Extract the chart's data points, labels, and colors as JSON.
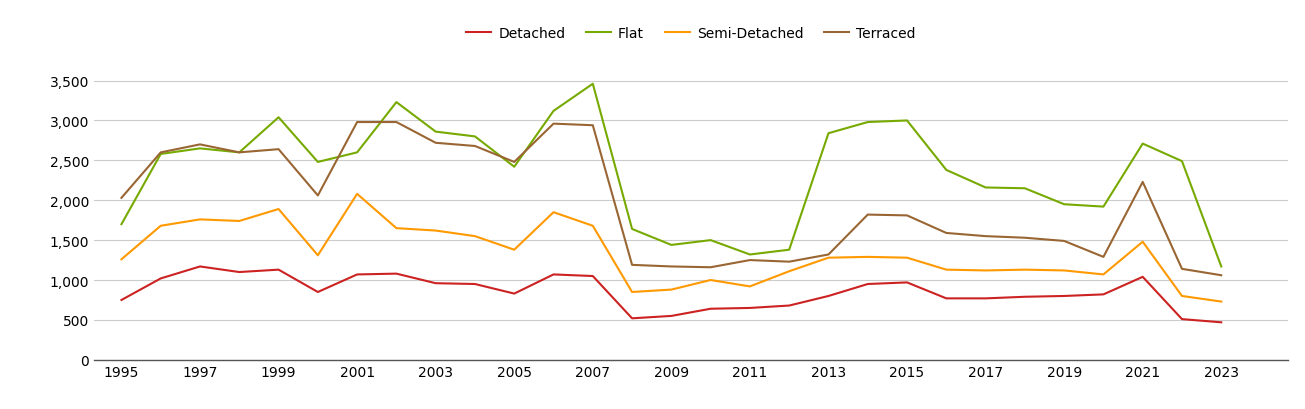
{
  "years": [
    1995,
    1996,
    1997,
    1998,
    1999,
    2000,
    2001,
    2002,
    2003,
    2004,
    2005,
    2006,
    2007,
    2008,
    2009,
    2010,
    2011,
    2012,
    2013,
    2014,
    2015,
    2016,
    2017,
    2018,
    2019,
    2020,
    2021,
    2022,
    2023,
    2024
  ],
  "detached": [
    750,
    1020,
    1170,
    1100,
    1130,
    850,
    1070,
    1080,
    960,
    950,
    830,
    1070,
    1050,
    520,
    550,
    640,
    650,
    680,
    800,
    950,
    970,
    770,
    770,
    790,
    800,
    820,
    1040,
    510,
    470,
    null
  ],
  "flat": [
    1700,
    2580,
    2650,
    2600,
    3040,
    2480,
    2600,
    3230,
    2860,
    2800,
    2420,
    3120,
    3460,
    1640,
    1440,
    1500,
    1320,
    1380,
    2840,
    2980,
    3000,
    2380,
    2160,
    2150,
    1950,
    1920,
    2710,
    2490,
    1170,
    null
  ],
  "semi_detached": [
    1260,
    1680,
    1760,
    1740,
    1890,
    1310,
    2080,
    1650,
    1620,
    1550,
    1380,
    1850,
    1680,
    850,
    880,
    1000,
    920,
    1110,
    1280,
    1290,
    1280,
    1130,
    1120,
    1130,
    1120,
    1070,
    1480,
    800,
    730,
    null
  ],
  "terraced": [
    2030,
    2600,
    2700,
    2600,
    2640,
    2060,
    2980,
    2980,
    2720,
    2680,
    2480,
    2960,
    2940,
    1190,
    1170,
    1160,
    1250,
    1230,
    1320,
    1820,
    1810,
    1590,
    1550,
    1530,
    1490,
    1290,
    2230,
    1140,
    1060,
    null
  ],
  "series_colors": {
    "detached": "#cc2222",
    "flat": "#77aa00",
    "semi_detached": "#ff9900",
    "terraced": "#996633"
  },
  "legend_labels": [
    "Detached",
    "Flat",
    "Semi-Detached",
    "Terraced"
  ],
  "ylim": [
    0,
    3700
  ],
  "yticks": [
    0,
    500,
    1000,
    1500,
    2000,
    2500,
    3000,
    3500
  ],
  "ytick_labels": [
    "0",
    "500",
    "1,000",
    "1,500",
    "2,000",
    "2,500",
    "3,000",
    "3,500"
  ],
  "xtick_years": [
    1995,
    1997,
    1999,
    2001,
    2003,
    2005,
    2007,
    2009,
    2011,
    2013,
    2015,
    2017,
    2019,
    2021,
    2023
  ],
  "background_color": "#ffffff",
  "grid_color": "#cccccc",
  "line_width": 1.5,
  "font_size_ticks": 10,
  "font_size_legend": 10
}
